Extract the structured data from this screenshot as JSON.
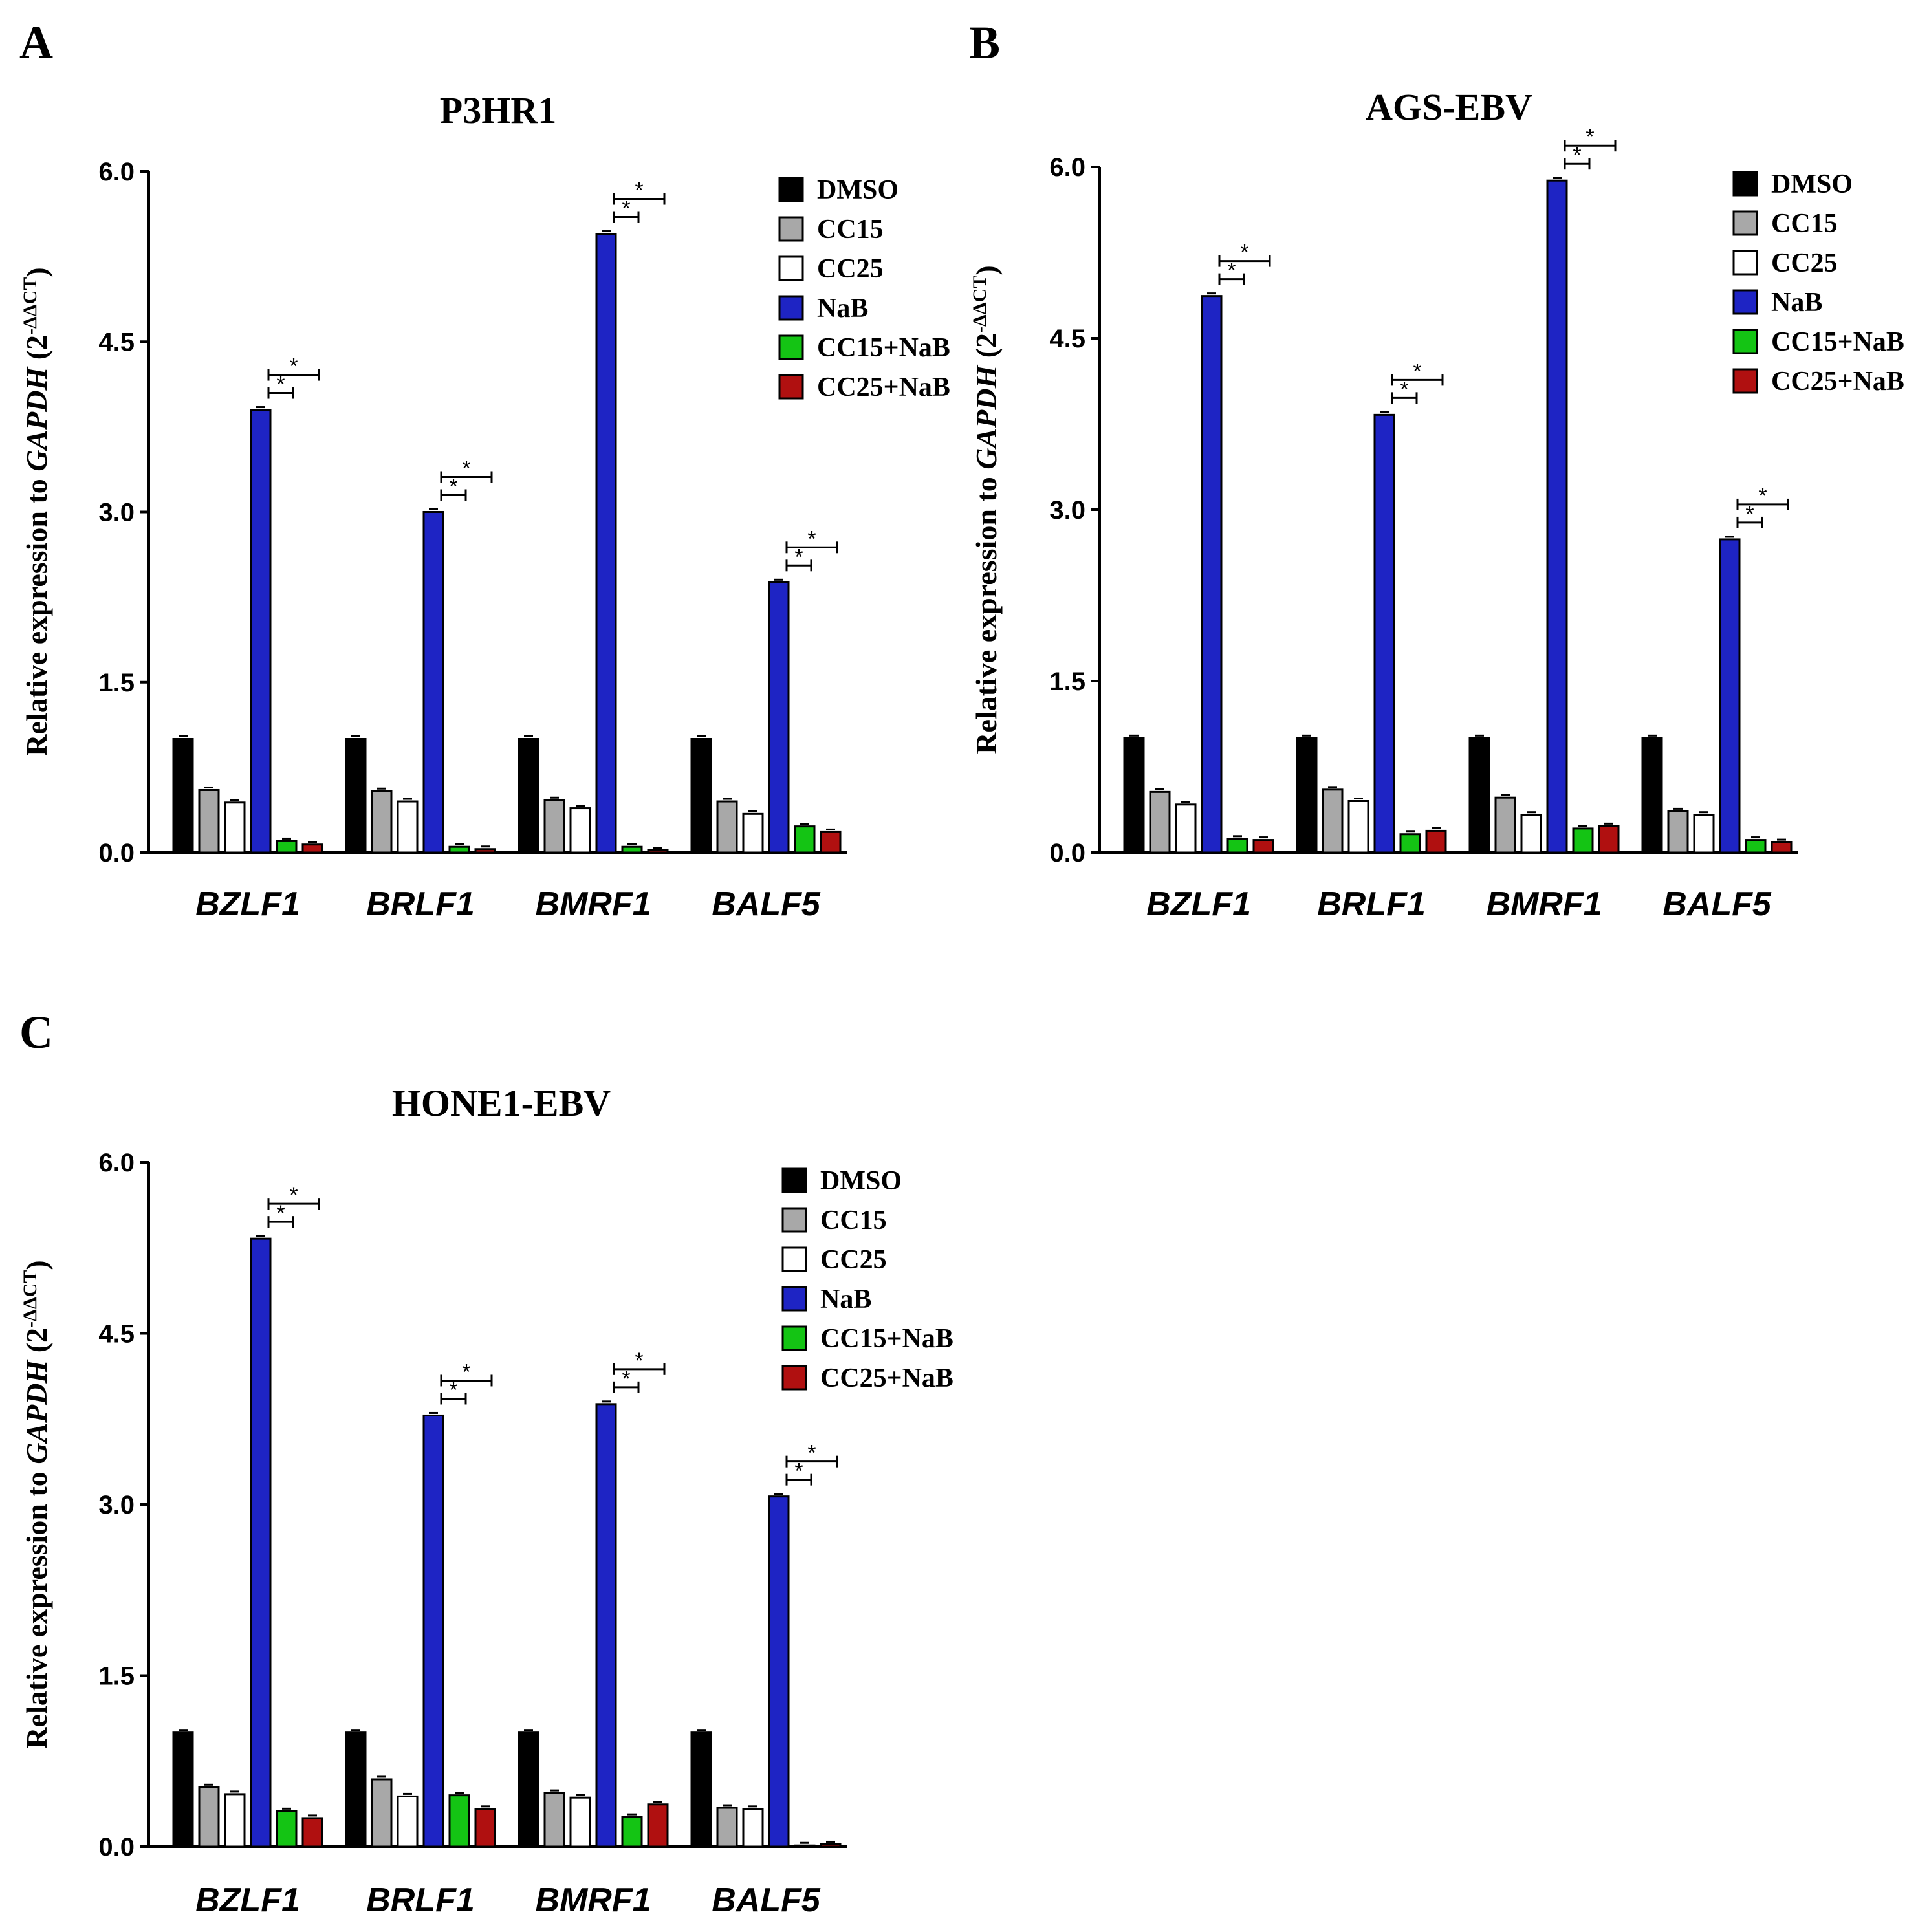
{
  "chart_data": [
    {
      "type": "bar",
      "panel": "A",
      "title": "P3HR1",
      "categories": [
        "BZLF1",
        "BRLF1",
        "BMRF1",
        "BALF5"
      ],
      "ylabel": {
        "prefix": "Relative expression to ",
        "gene": "GAPDH",
        "paren_open": " (2",
        "sup": "-ΔΔCT",
        "paren_close": ")"
      },
      "ylim": [
        0,
        6.0
      ],
      "yticks": [
        "0.0",
        "1.5",
        "3.0",
        "4.5",
        "6.0"
      ],
      "series": [
        {
          "name": "DMSO",
          "color": "#000000",
          "values": [
            1.0,
            1.0,
            1.0,
            1.0
          ]
        },
        {
          "name": "CC15",
          "color": "#a8a8a8",
          "values": [
            0.55,
            0.54,
            0.46,
            0.45
          ]
        },
        {
          "name": "CC25",
          "color": "#ffffff",
          "values": [
            0.44,
            0.45,
            0.39,
            0.34
          ]
        },
        {
          "name": "NaB",
          "color": "#1e24c4",
          "values": [
            3.9,
            3.0,
            5.45,
            2.38
          ]
        },
        {
          "name": "CC15+NaB",
          "color": "#14c414",
          "values": [
            0.1,
            0.05,
            0.05,
            0.23
          ]
        },
        {
          "name": "CC25+NaB",
          "color": "#b01010",
          "values": [
            0.07,
            0.03,
            0.02,
            0.18
          ]
        }
      ],
      "significance": "*"
    },
    {
      "type": "bar",
      "panel": "B",
      "title": "AGS-EBV",
      "categories": [
        "BZLF1",
        "BRLF1",
        "BMRF1",
        "BALF5"
      ],
      "ylabel": {
        "prefix": "Relative expression to ",
        "gene": "GAPDH",
        "paren_open": " (2",
        "sup": "-ΔΔCT",
        "paren_close": ")"
      },
      "ylim": [
        0,
        6.0
      ],
      "yticks": [
        "0.0",
        "1.5",
        "3.0",
        "4.5",
        "6.0"
      ],
      "series": [
        {
          "name": "DMSO",
          "color": "#000000",
          "values": [
            1.0,
            1.0,
            1.0,
            1.0
          ]
        },
        {
          "name": "CC15",
          "color": "#a8a8a8",
          "values": [
            0.53,
            0.55,
            0.48,
            0.36
          ]
        },
        {
          "name": "CC25",
          "color": "#ffffff",
          "values": [
            0.42,
            0.45,
            0.33,
            0.33
          ]
        },
        {
          "name": "NaB",
          "color": "#1e24c4",
          "values": [
            4.87,
            3.83,
            5.88,
            2.74
          ]
        },
        {
          "name": "CC15+NaB",
          "color": "#14c414",
          "values": [
            0.12,
            0.16,
            0.21,
            0.11
          ]
        },
        {
          "name": "CC25+NaB",
          "color": "#b01010",
          "values": [
            0.11,
            0.19,
            0.23,
            0.09
          ]
        }
      ],
      "significance": "*"
    },
    {
      "type": "bar",
      "panel": "C",
      "title": "HONE1-EBV",
      "categories": [
        "BZLF1",
        "BRLF1",
        "BMRF1",
        "BALF5"
      ],
      "ylabel": {
        "prefix": "Relative expression to ",
        "gene": "GAPDH",
        "paren_open": " (2",
        "sup": "-ΔΔCT",
        "paren_close": ")"
      },
      "ylim": [
        0,
        6.0
      ],
      "yticks": [
        "0.0",
        "1.5",
        "3.0",
        "4.5",
        "6.0"
      ],
      "series": [
        {
          "name": "DMSO",
          "color": "#000000",
          "values": [
            1.0,
            1.0,
            1.0,
            1.0
          ]
        },
        {
          "name": "CC15",
          "color": "#a8a8a8",
          "values": [
            0.52,
            0.59,
            0.47,
            0.34
          ]
        },
        {
          "name": "CC25",
          "color": "#ffffff",
          "values": [
            0.46,
            0.44,
            0.43,
            0.33
          ]
        },
        {
          "name": "NaB",
          "color": "#1e24c4",
          "values": [
            5.33,
            3.78,
            3.88,
            3.07
          ]
        },
        {
          "name": "CC15+NaB",
          "color": "#14c414",
          "values": [
            0.31,
            0.45,
            0.26,
            0.01
          ]
        },
        {
          "name": "CC25+NaB",
          "color": "#b01010",
          "values": [
            0.25,
            0.33,
            0.37,
            0.02
          ]
        }
      ],
      "significance": "*"
    }
  ]
}
